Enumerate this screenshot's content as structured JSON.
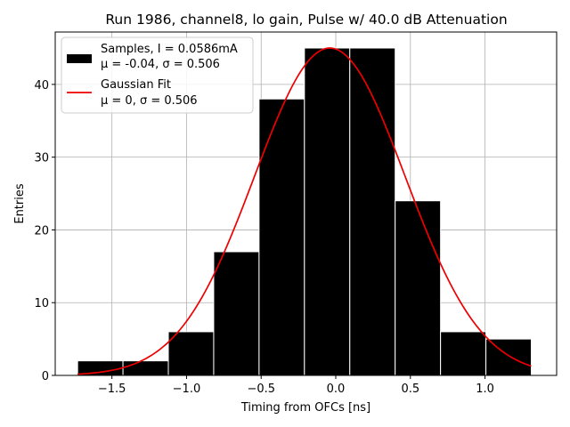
{
  "chart_data": {
    "type": "bar",
    "title": "Run 1986, channel8, lo gain, Pulse w/ 40.0 dB Attenuation",
    "xlabel": "Timing from OFCs [ns]",
    "ylabel": "Entries",
    "xlim": [
      -1.88,
      1.48
    ],
    "ylim": [
      0,
      47.2
    ],
    "grid": true,
    "xticks": [
      -1.5,
      -1.0,
      -0.5,
      0.0,
      0.5,
      1.0
    ],
    "xtick_labels": [
      "−1.5",
      "−1.0",
      "−0.5",
      "0.0",
      "0.5",
      "1.0"
    ],
    "yticks": [
      0,
      10,
      20,
      30,
      40
    ],
    "ytick_labels": [
      "0",
      "10",
      "20",
      "30",
      "40"
    ],
    "histogram": {
      "name": "Samples, I = 0.0586mA",
      "stats": "μ = -0.04, σ = 0.506",
      "color": "#000000",
      "edgecolor": "#ffffff",
      "bin_edges": [
        -1.73,
        -1.426,
        -1.122,
        -0.818,
        -0.514,
        -0.21,
        0.094,
        0.398,
        0.702,
        1.006,
        1.31
      ],
      "counts": [
        2,
        2,
        6,
        17,
        38,
        45,
        45,
        24,
        6,
        5
      ]
    },
    "fit": {
      "name": "Gaussian Fit",
      "stats": "μ = 0, σ = 0.506",
      "color": "#ee0000",
      "mu": -0.04,
      "sigma": 0.506,
      "amplitude": 45,
      "x_range": [
        -1.73,
        1.31
      ]
    },
    "legend_position": "top-left"
  }
}
